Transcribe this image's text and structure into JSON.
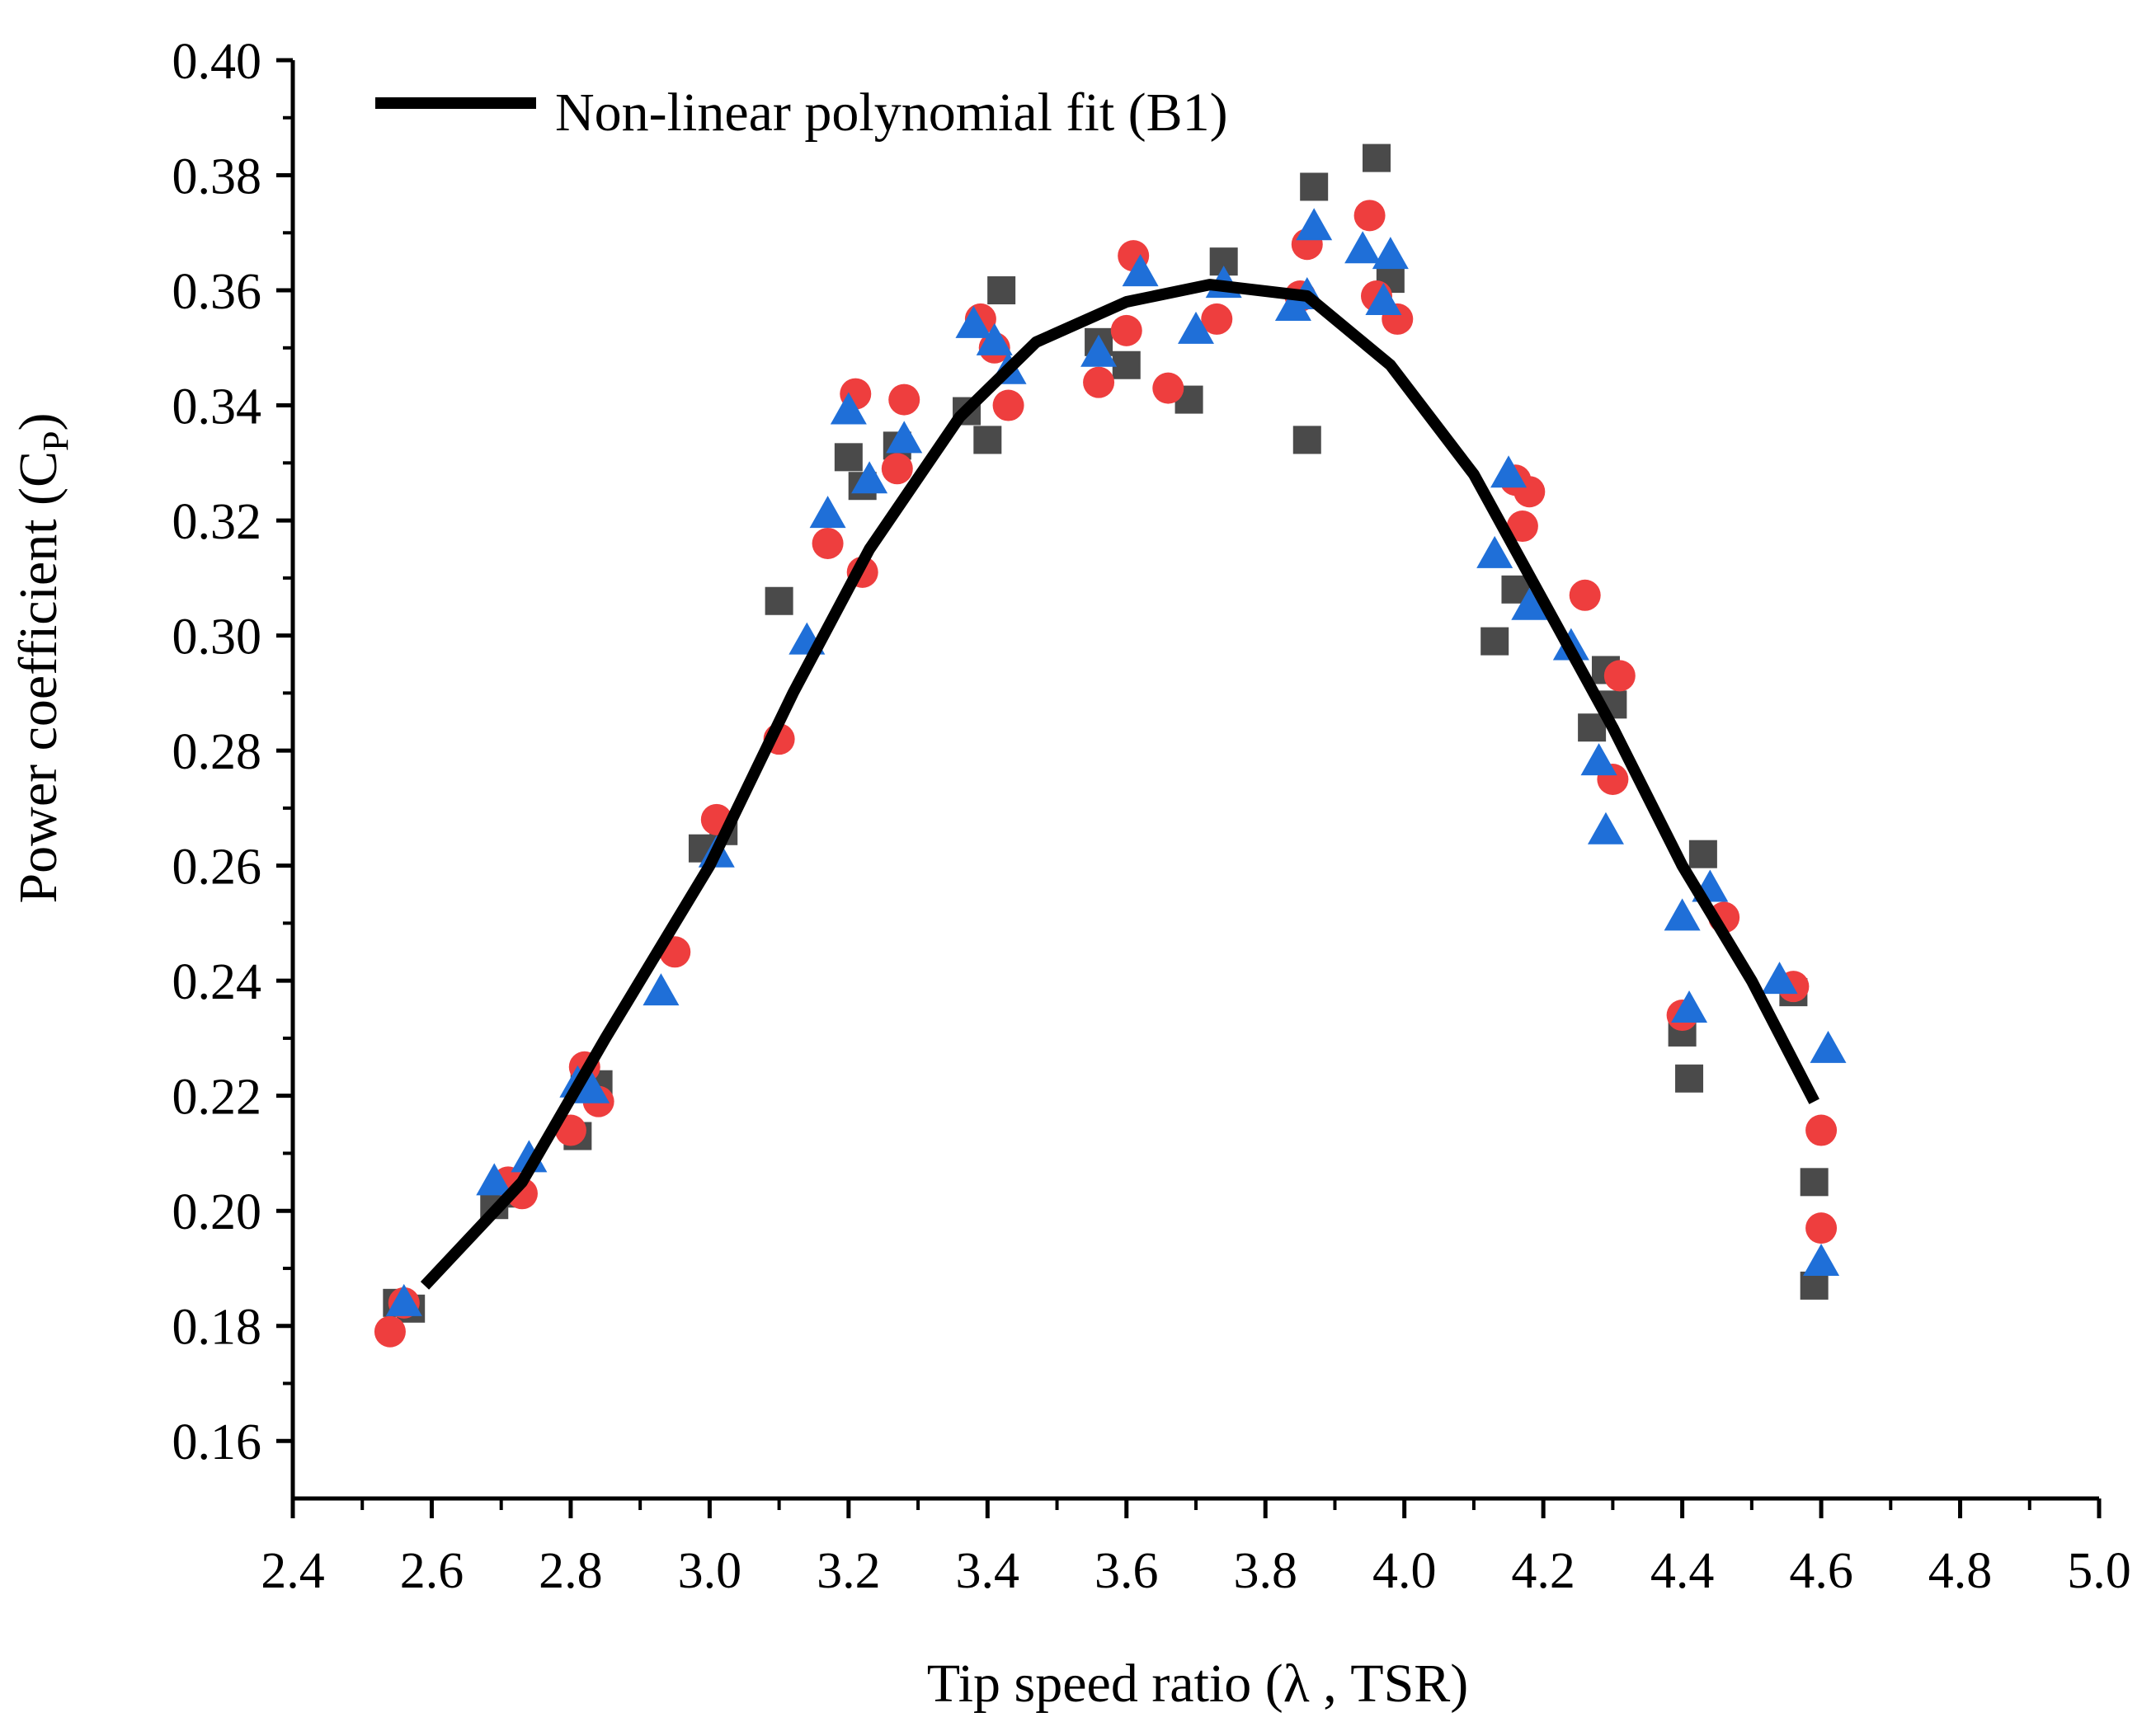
{
  "chart_data": {
    "type": "scatter",
    "xlabel": "Tip speed ratio (λ , TSR)",
    "ylabel": "Power coefficient",
    "ylabel_symbol": "C",
    "ylabel_subscript": "P",
    "xlim": [
      2.4,
      5.0
    ],
    "ylim": [
      0.15,
      0.4
    ],
    "xticks": [
      "2.4",
      "2.6",
      "2.8",
      "3.0",
      "3.2",
      "3.4",
      "3.6",
      "3.8",
      "4.0",
      "4.2",
      "4.4",
      "4.6",
      "4.8",
      "5.0"
    ],
    "yticks": [
      "0.16",
      "0.18",
      "0.20",
      "0.22",
      "0.24",
      "0.26",
      "0.28",
      "0.30",
      "0.32",
      "0.34",
      "0.36",
      "0.38",
      "0.40"
    ],
    "grid": false,
    "legend": {
      "position": "top-left",
      "entries": [
        "Non-linear polynomial fit (B1)"
      ]
    },
    "fit": {
      "name": "Non-linear polynomial fit (B1)",
      "color": "#000000",
      "x": [
        2.59,
        2.73,
        2.85,
        3.0,
        3.12,
        3.23,
        3.36,
        3.47,
        3.6,
        3.72,
        3.86,
        3.98,
        4.1,
        4.2,
        4.3,
        4.4,
        4.5,
        4.59
      ],
      "y": [
        0.187,
        0.205,
        0.23,
        0.26,
        0.29,
        0.315,
        0.338,
        0.351,
        0.358,
        0.361,
        0.359,
        0.347,
        0.328,
        0.306,
        0.284,
        0.26,
        0.24,
        0.219
      ]
    },
    "series": [
      {
        "name": "squares",
        "marker": "square",
        "color": "#4a4a4a",
        "x": [
          2.55,
          2.57,
          2.69,
          2.71,
          2.81,
          2.82,
          2.84,
          2.99,
          3.02,
          3.1,
          3.2,
          3.22,
          3.27,
          3.37,
          3.4,
          3.42,
          3.56,
          3.6,
          3.69,
          3.74,
          3.86,
          3.87,
          3.96,
          3.98,
          4.13,
          4.16,
          4.27,
          4.29,
          4.3,
          4.4,
          4.41,
          4.43,
          4.56,
          4.59,
          4.59
        ],
        "y": [
          0.184,
          0.183,
          0.201,
          0.203,
          0.213,
          0.223,
          0.222,
          0.263,
          0.266,
          0.306,
          0.331,
          0.326,
          0.333,
          0.339,
          0.334,
          0.36,
          0.351,
          0.347,
          0.341,
          0.365,
          0.334,
          0.378,
          0.383,
          0.362,
          0.299,
          0.308,
          0.284,
          0.294,
          0.288,
          0.231,
          0.223,
          0.262,
          0.238,
          0.205,
          0.187
        ]
      },
      {
        "name": "circles",
        "marker": "circle",
        "color": "#ee3e3e",
        "x": [
          2.54,
          2.56,
          2.71,
          2.73,
          2.8,
          2.82,
          2.84,
          2.95,
          3.01,
          3.1,
          3.17,
          3.21,
          3.22,
          3.27,
          3.28,
          3.39,
          3.41,
          3.43,
          3.56,
          3.6,
          3.61,
          3.66,
          3.73,
          3.85,
          3.86,
          3.95,
          3.96,
          3.99,
          4.16,
          4.17,
          4.18,
          4.26,
          4.3,
          4.31,
          4.4,
          4.46,
          4.56,
          4.6,
          4.6
        ],
        "y": [
          0.179,
          0.184,
          0.205,
          0.203,
          0.214,
          0.225,
          0.219,
          0.245,
          0.268,
          0.282,
          0.316,
          0.342,
          0.311,
          0.329,
          0.341,
          0.355,
          0.35,
          0.34,
          0.344,
          0.353,
          0.366,
          0.343,
          0.355,
          0.359,
          0.368,
          0.373,
          0.359,
          0.355,
          0.327,
          0.319,
          0.325,
          0.307,
          0.275,
          0.293,
          0.234,
          0.251,
          0.239,
          0.214,
          0.197
        ]
      },
      {
        "name": "triangles",
        "marker": "triangle",
        "color": "#1f6fd8",
        "x": [
          2.56,
          2.69,
          2.74,
          2.81,
          2.83,
          2.93,
          3.01,
          3.14,
          3.17,
          3.2,
          3.23,
          3.28,
          3.38,
          3.41,
          3.43,
          3.56,
          3.62,
          3.7,
          3.74,
          3.84,
          3.86,
          3.87,
          3.94,
          3.97,
          3.98,
          4.13,
          4.15,
          4.18,
          4.24,
          4.28,
          4.29,
          4.4,
          4.41,
          4.44,
          4.54,
          4.6,
          4.61
        ],
        "y": [
          0.184,
          0.205,
          0.209,
          0.222,
          0.221,
          0.238,
          0.262,
          0.299,
          0.321,
          0.339,
          0.327,
          0.334,
          0.354,
          0.351,
          0.346,
          0.349,
          0.363,
          0.353,
          0.361,
          0.357,
          0.359,
          0.371,
          0.367,
          0.358,
          0.366,
          0.314,
          0.328,
          0.305,
          0.298,
          0.278,
          0.266,
          0.251,
          0.235,
          0.256,
          0.24,
          0.191,
          0.228
        ]
      }
    ]
  }
}
